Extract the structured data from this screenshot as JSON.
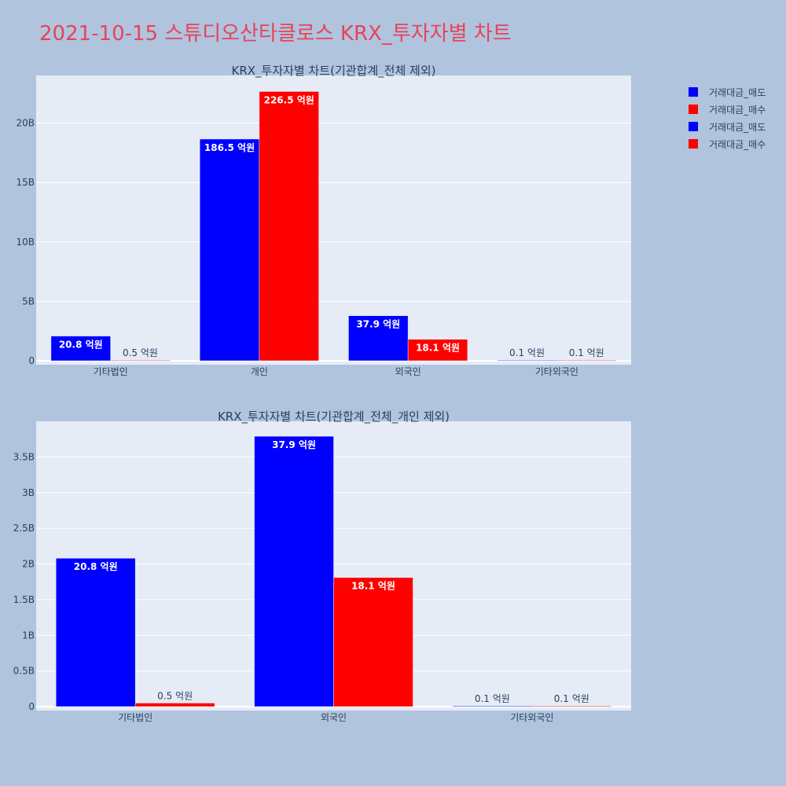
{
  "page_title": "2021-10-15 스튜디오산타클로스 KRX_투자자별 차트",
  "colors": {
    "background": "#b0c4de",
    "plot_bg": "#e5ecf6",
    "title": "#e8435a",
    "sell": "#0000ff",
    "buy": "#ff0000"
  },
  "legend": [
    {
      "label": "거래대금_매도",
      "color": "#0000ff"
    },
    {
      "label": "거래대금_매수",
      "color": "#ff0000"
    },
    {
      "label": "거래대금_매도",
      "color": "#0000ff"
    },
    {
      "label": "거래대금_매수",
      "color": "#ff0000"
    }
  ],
  "chart_data": [
    {
      "type": "bar",
      "title": "KRX_투자자별 차트(기관합계_전체 제외)",
      "categories": [
        "기타법인",
        "개인",
        "외국인",
        "기타외국인"
      ],
      "ylim": [
        0,
        24000000000
      ],
      "yticks": [
        0,
        5000000000,
        10000000000,
        15000000000,
        20000000000
      ],
      "ytick_labels": [
        "0",
        "5B",
        "10B",
        "15B",
        "20B"
      ],
      "grid": true,
      "series": [
        {
          "name": "거래대금_매도",
          "color": "#0000ff",
          "values": [
            2080000000,
            18650000000,
            3790000000,
            10000000
          ],
          "labels": [
            "20.8 억원",
            "186.5 억원",
            "37.9 억원",
            "0.1 억원"
          ]
        },
        {
          "name": "거래대금_매수",
          "color": "#ff0000",
          "values": [
            50000000,
            22650000000,
            1810000000,
            10000000
          ],
          "labels": [
            "0.5 억원",
            "226.5 억원",
            "18.1 억원",
            "0.1 억원"
          ]
        }
      ]
    },
    {
      "type": "bar",
      "title": "KRX_투자자별 차트(기관합계_전체_개인 제외)",
      "categories": [
        "기타법인",
        "외국인",
        "기타외국인"
      ],
      "ylim": [
        0,
        4000000000
      ],
      "yticks": [
        0,
        500000000,
        1000000000,
        1500000000,
        2000000000,
        2500000000,
        3000000000,
        3500000000
      ],
      "ytick_labels": [
        "0",
        "0.5B",
        "1B",
        "1.5B",
        "2B",
        "2.5B",
        "3B",
        "3.5B"
      ],
      "grid": true,
      "series": [
        {
          "name": "거래대금_매도",
          "color": "#0000ff",
          "values": [
            2080000000,
            3790000000,
            10000000
          ],
          "labels": [
            "20.8 억원",
            "37.9 억원",
            "0.1 억원"
          ]
        },
        {
          "name": "거래대금_매수",
          "color": "#ff0000",
          "values": [
            50000000,
            1810000000,
            10000000
          ],
          "labels": [
            "0.5 억원",
            "18.1 억원",
            "0.1 억원"
          ]
        }
      ]
    }
  ]
}
